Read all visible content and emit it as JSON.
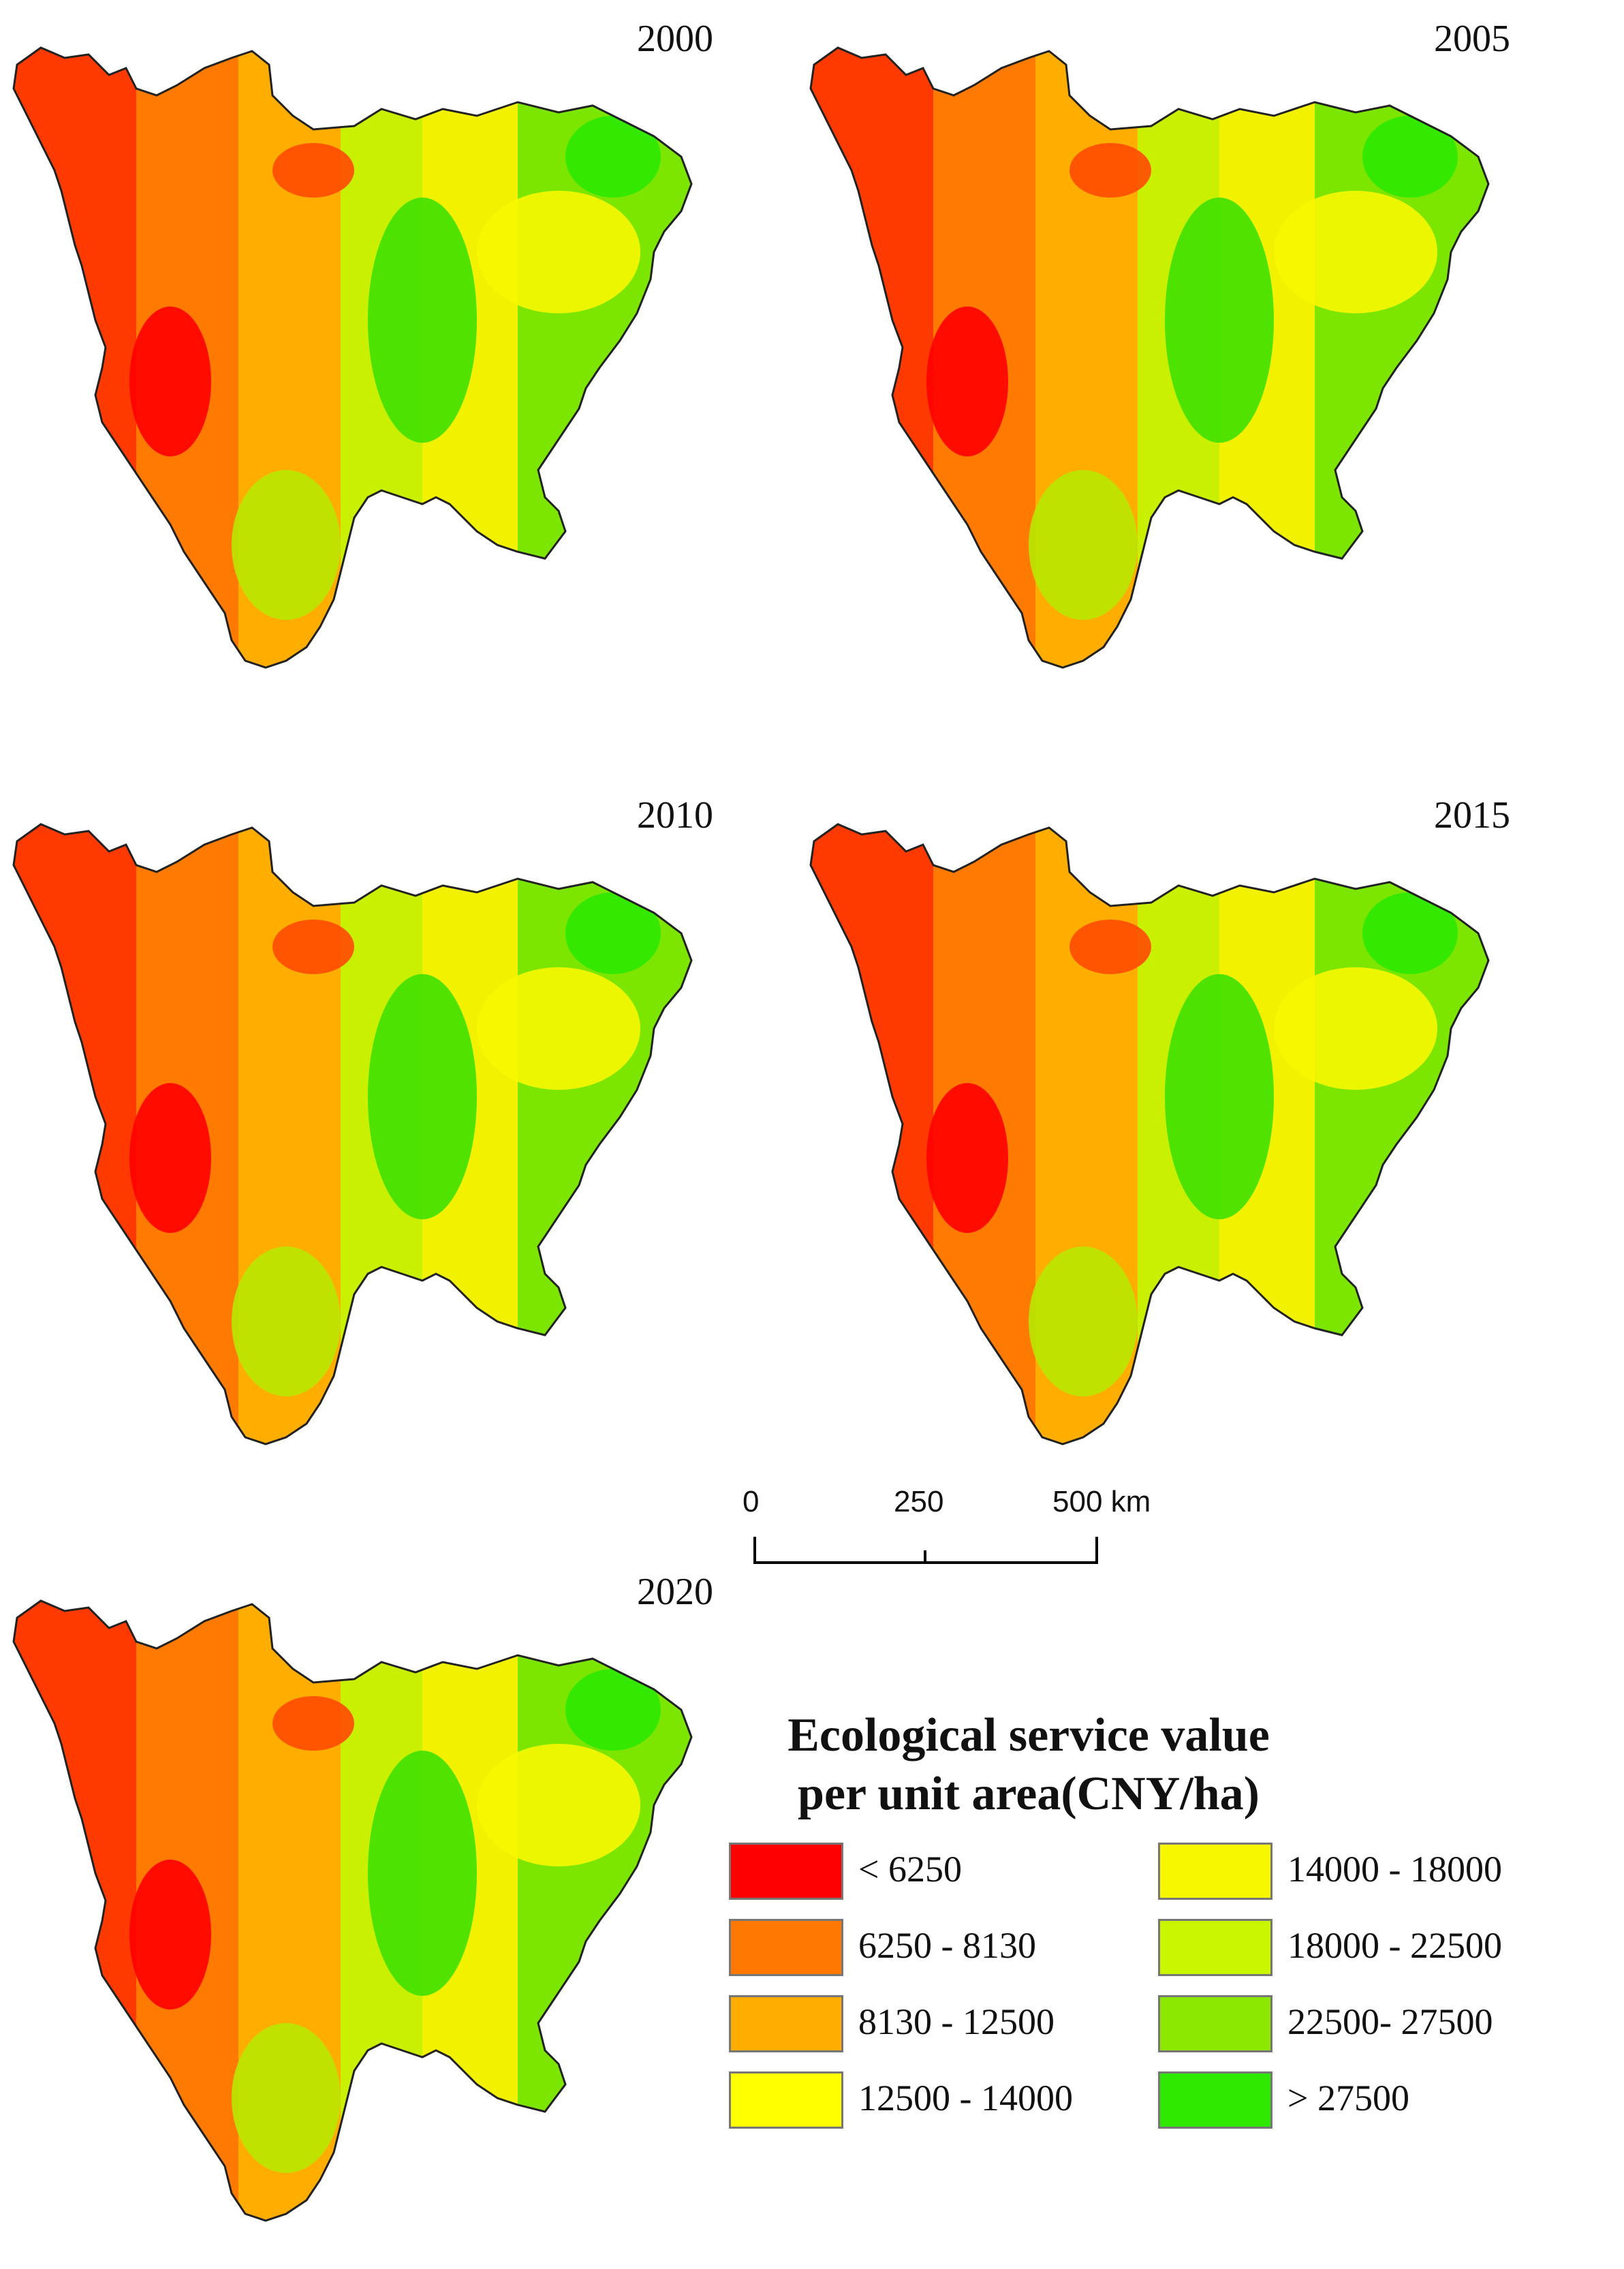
{
  "panels": [
    {
      "year": "2000"
    },
    {
      "year": "2005"
    },
    {
      "year": "2010"
    },
    {
      "year": "2015"
    },
    {
      "year": "2020"
    }
  ],
  "scale_bar": {
    "ticks": [
      "0",
      "250",
      "500 km"
    ]
  },
  "legend": {
    "title_line1": "Ecological service value",
    "title_line2": "per unit area(CNY/ha)",
    "classes": [
      {
        "label": "< 6250",
        "color": "#ff0000"
      },
      {
        "label": "6250 - 8130",
        "color": "#ff7800"
      },
      {
        "label": "8130 - 12500",
        "color": "#ffae00"
      },
      {
        "label": "12500 - 14000",
        "color": "#ffff00"
      },
      {
        "label": "14000 - 18000",
        "color": "#f7f700"
      },
      {
        "label": "18000 - 22500",
        "color": "#c8f500"
      },
      {
        "label": "22500- 27500",
        "color": "#8ce800"
      },
      {
        "label": "> 27500",
        "color": "#2ee800"
      }
    ]
  }
}
